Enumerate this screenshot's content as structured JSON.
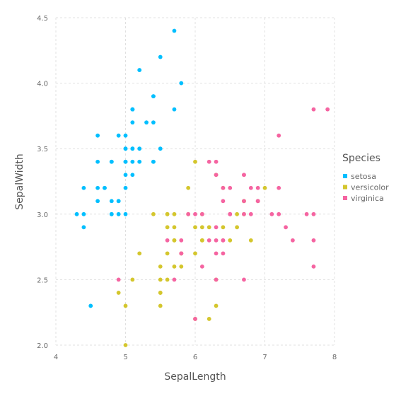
{
  "chart_data": {
    "type": "scatter",
    "title": "",
    "xlabel": "SepalLength",
    "ylabel": "SepalWidth",
    "xlim": [
      4,
      8
    ],
    "ylim": [
      2.0,
      4.5
    ],
    "xticks": [
      4,
      5,
      6,
      7,
      8
    ],
    "yticks": [
      2.0,
      2.5,
      3.0,
      3.5,
      4.0,
      4.5
    ],
    "xtick_labels": [
      "4",
      "5",
      "6",
      "7",
      "8"
    ],
    "ytick_labels": [
      "2.0",
      "2.5",
      "3.0",
      "3.5",
      "4.0",
      "4.5"
    ],
    "grid": true,
    "legend": {
      "title": "Species",
      "placement": "right"
    },
    "series": [
      {
        "name": "setosa",
        "color": "#00BFFF",
        "x": [
          5.1,
          4.9,
          4.7,
          4.6,
          5.0,
          5.4,
          4.6,
          5.0,
          4.4,
          4.9,
          5.4,
          4.8,
          4.8,
          4.3,
          5.8,
          5.7,
          5.4,
          5.1,
          5.7,
          5.1,
          5.4,
          5.1,
          4.6,
          5.1,
          4.8,
          5.0,
          5.0,
          5.2,
          5.2,
          4.7,
          4.8,
          5.4,
          5.2,
          5.5,
          4.9,
          5.0,
          5.5,
          4.9,
          4.4,
          5.1,
          5.0,
          4.5,
          4.4,
          5.0,
          5.1,
          4.8,
          5.1,
          4.6,
          5.3,
          5.0
        ],
        "y": [
          3.5,
          3.0,
          3.2,
          3.1,
          3.6,
          3.9,
          3.4,
          3.4,
          2.9,
          3.1,
          3.7,
          3.4,
          3.0,
          3.0,
          4.0,
          4.4,
          3.9,
          3.5,
          3.8,
          3.8,
          3.4,
          3.7,
          3.6,
          3.3,
          3.4,
          3.0,
          3.4,
          3.5,
          3.4,
          3.2,
          3.1,
          3.4,
          4.1,
          4.2,
          3.1,
          3.2,
          3.5,
          3.6,
          3.0,
          3.4,
          3.5,
          2.3,
          3.2,
          3.5,
          3.8,
          3.0,
          3.8,
          3.2,
          3.7,
          3.3
        ]
      },
      {
        "name": "versicolor",
        "color": "#D4C62D",
        "x": [
          7.0,
          6.4,
          6.9,
          5.5,
          6.5,
          5.7,
          6.3,
          4.9,
          6.6,
          5.2,
          5.0,
          5.9,
          6.0,
          6.1,
          5.6,
          6.7,
          5.6,
          5.8,
          6.2,
          5.6,
          5.9,
          6.1,
          6.3,
          6.1,
          6.4,
          6.6,
          6.8,
          6.7,
          6.0,
          5.7,
          5.5,
          5.5,
          5.8,
          6.0,
          5.4,
          6.0,
          6.7,
          6.3,
          5.6,
          5.5,
          5.5,
          6.1,
          5.8,
          5.0,
          5.6,
          5.7,
          5.7,
          6.2,
          5.1,
          5.7
        ],
        "y": [
          3.2,
          3.2,
          3.1,
          2.3,
          2.8,
          2.8,
          3.3,
          2.4,
          2.9,
          2.7,
          2.0,
          3.0,
          2.2,
          2.9,
          2.9,
          3.1,
          3.0,
          2.7,
          2.2,
          2.5,
          3.2,
          2.8,
          2.5,
          2.8,
          2.9,
          3.0,
          2.8,
          3.0,
          2.9,
          2.6,
          2.4,
          2.4,
          2.7,
          2.7,
          3.0,
          3.4,
          3.1,
          2.3,
          3.0,
          2.5,
          2.6,
          3.0,
          2.6,
          2.3,
          2.7,
          3.0,
          2.9,
          2.9,
          2.5,
          2.8
        ]
      },
      {
        "name": "virginica",
        "color": "#F564A1",
        "x": [
          6.3,
          5.8,
          7.1,
          6.3,
          6.5,
          7.6,
          4.9,
          7.3,
          6.7,
          7.2,
          6.5,
          6.4,
          6.8,
          5.7,
          5.8,
          6.4,
          6.5,
          7.7,
          7.7,
          6.0,
          6.9,
          5.6,
          7.7,
          6.3,
          6.7,
          7.2,
          6.2,
          6.1,
          6.4,
          7.2,
          7.4,
          7.9,
          6.4,
          6.3,
          6.1,
          7.7,
          6.3,
          6.4,
          6.0,
          6.9,
          6.7,
          6.9,
          5.8,
          6.8,
          6.7,
          6.7,
          6.3,
          6.5,
          6.2,
          5.9
        ],
        "y": [
          3.3,
          2.7,
          3.0,
          2.9,
          3.0,
          3.0,
          2.5,
          2.9,
          2.5,
          3.6,
          3.2,
          2.7,
          3.0,
          2.5,
          2.8,
          3.2,
          3.0,
          3.8,
          2.6,
          2.2,
          3.2,
          2.8,
          2.8,
          2.7,
          3.3,
          3.2,
          2.8,
          3.0,
          2.8,
          3.0,
          2.8,
          3.8,
          2.8,
          2.8,
          2.6,
          3.0,
          3.4,
          3.1,
          3.0,
          3.1,
          3.1,
          3.1,
          2.7,
          3.2,
          3.3,
          3.0,
          2.5,
          3.0,
          3.4,
          3.0
        ]
      }
    ]
  }
}
